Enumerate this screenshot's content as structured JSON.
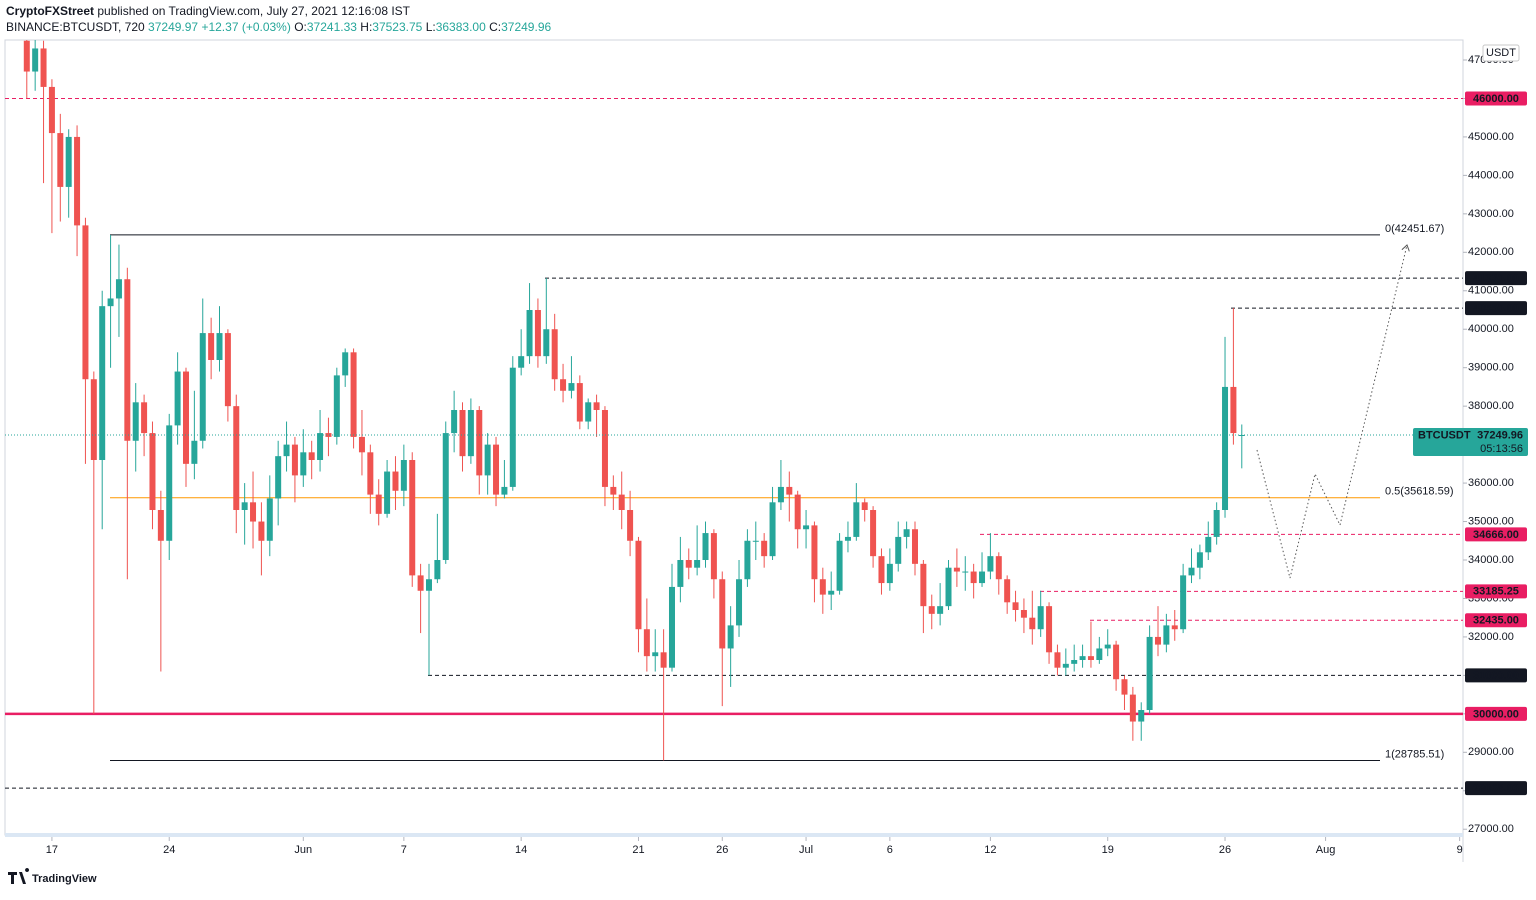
{
  "header": {
    "author": "CryptoFXStreet",
    "published": "published on TradingView.com, July 27, 2021 12:16:08 IST",
    "symbol": "BINANCE:BTCUSDT, 720",
    "last": "37249.97",
    "change": "+12.37 (+0.03%)",
    "ohlc": [
      {
        "key": "O:",
        "value": "37241.33"
      },
      {
        "key": "H:",
        "value": "37523.75"
      },
      {
        "key": "L:",
        "value": "36383.00"
      },
      {
        "key": "C:",
        "value": "37249.96"
      }
    ]
  },
  "chart_data": {
    "type": "candlestick",
    "currency": "USDT",
    "up_color": "#26a69a",
    "down_color": "#ef5350",
    "grid": false,
    "x": [
      -1.5,
      -1,
      -0.5,
      0,
      0.5,
      1,
      1.5,
      2,
      2.5,
      3,
      3.5,
      4,
      4.5,
      5,
      5.5,
      6,
      6.5,
      7,
      7.5,
      8,
      8.5,
      9,
      9.5,
      10,
      10.5,
      11,
      11.5,
      12,
      12.5,
      13,
      13.5,
      14,
      14.5,
      15,
      15.5,
      16,
      16.5,
      17,
      17.5,
      18,
      18.5,
      19,
      19.5,
      20,
      20.5,
      21,
      21.5,
      22,
      22.5,
      23,
      23.5,
      24,
      24.5,
      25,
      25.5,
      26,
      26.5,
      27,
      27.5,
      28,
      28.5,
      29,
      29.5,
      30,
      30.5,
      31,
      31.5,
      32,
      32.5,
      33,
      33.5,
      34,
      34.5,
      35,
      35.5,
      36,
      36.5,
      37,
      37.5,
      38,
      38.5,
      39,
      39.5,
      40,
      40.5,
      41,
      41.5,
      42,
      42.5,
      43,
      43.5,
      44,
      44.5,
      45,
      45.5,
      46,
      46.5,
      47,
      47.5,
      48,
      48.5,
      49,
      49.5,
      50,
      50.5,
      51,
      51.5,
      52,
      52.5,
      53,
      53.5,
      54,
      54.5,
      55,
      55.5,
      56,
      56.5,
      57,
      57.5,
      58,
      58.5,
      59,
      59.5,
      60,
      60.5,
      61,
      61.5,
      62,
      62.5,
      63,
      63.5,
      64,
      64.5,
      65,
      65.5,
      66,
      66.5,
      67,
      67.5,
      68,
      68.5,
      69,
      69.5,
      70,
      70.5,
      71
    ],
    "open": [
      47500,
      46700,
      47300,
      46300,
      45100,
      43700,
      45000,
      42700,
      38700,
      36600,
      40600,
      40800,
      41300,
      37100,
      38100,
      37300,
      35300,
      34500,
      37500,
      38900,
      36500,
      37100,
      39900,
      39200,
      39900,
      38000,
      35300,
      35500,
      35000,
      34500,
      35600,
      36700,
      37000,
      36200,
      36800,
      36600,
      37300,
      37200,
      38800,
      39400,
      37200,
      36800,
      35700,
      35200,
      36300,
      35800,
      36600,
      33600,
      33200,
      33500,
      34000,
      37300,
      37900,
      36700,
      37900,
      36200,
      37000,
      35700,
      35900,
      39000,
      39300,
      40500,
      39300,
      40000,
      38700,
      38400,
      38600,
      37600,
      38100,
      37900,
      35900,
      35700,
      35300,
      34500,
      32200,
      31500,
      31600,
      31200,
      33300,
      34000,
      33800,
      34000,
      34700,
      33500,
      31700,
      32300,
      33500,
      34500,
      34500,
      34100,
      35500,
      35900,
      35700,
      34800,
      34900,
      33500,
      33100,
      33200,
      34500,
      34600,
      35500,
      35300,
      34100,
      33400,
      33900,
      34600,
      34800,
      33900,
      32800,
      32600,
      32800,
      33800,
      33700,
      33700,
      33400,
      33700,
      34100,
      33500,
      32900,
      32700,
      32500,
      32200,
      32800,
      31600,
      31200,
      31300,
      31400,
      31500,
      31400,
      31700,
      31800,
      30900,
      30500,
      29800,
      30100,
      32000,
      31800,
      32300,
      32200,
      33600,
      33800,
      34200,
      34600,
      35300,
      38500,
      37241.33
    ],
    "high": [
      47700,
      47600,
      47500,
      46500,
      45600,
      45200,
      45300,
      42900,
      38900,
      41000,
      42450,
      42200,
      41600,
      38600,
      38300,
      37600,
      35800,
      37800,
      39400,
      39000,
      38400,
      40800,
      40300,
      40600,
      40000,
      38300,
      36000,
      36300,
      35500,
      36200,
      37100,
      37600,
      37200,
      37400,
      37100,
      37900,
      37700,
      39000,
      39500,
      39500,
      37900,
      37000,
      36100,
      36600,
      36700,
      37000,
      36800,
      33900,
      33900,
      35200,
      37600,
      38400,
      38100,
      38200,
      38000,
      37300,
      37200,
      36600,
      39300,
      40000,
      41200,
      40800,
      41330,
      40400,
      39100,
      39300,
      38800,
      38200,
      38300,
      38000,
      36200,
      36300,
      35800,
      34600,
      33000,
      32200,
      32200,
      33900,
      34600,
      34300,
      34900,
      35000,
      34800,
      33700,
      32800,
      34000,
      34800,
      35000,
      34700,
      35900,
      36600,
      36300,
      35800,
      35300,
      35000,
      33800,
      33700,
      34700,
      35000,
      36000,
      35600,
      35400,
      34300,
      34300,
      35000,
      35000,
      35000,
      34000,
      33100,
      33400,
      34000,
      34300,
      34100,
      33900,
      34200,
      34700,
      34200,
      33600,
      33200,
      33000,
      33200,
      33200,
      32900,
      31800,
      31700,
      31800,
      31800,
      32400,
      32000,
      32200,
      31900,
      31000,
      30700,
      30300,
      32300,
      32800,
      32600,
      32700,
      33900,
      34300,
      34400,
      35000,
      35500,
      39800,
      40550,
      37523.75
    ],
    "low": [
      46000,
      46200,
      43800,
      42500,
      42800,
      42900,
      41900,
      36500,
      30000,
      34800,
      39000,
      39800,
      33500,
      36300,
      36700,
      34800,
      31100,
      34000,
      37000,
      35900,
      36100,
      36900,
      38700,
      38900,
      37600,
      34700,
      34400,
      34300,
      33600,
      34100,
      34900,
      36300,
      35500,
      35900,
      36100,
      36300,
      36700,
      37000,
      38500,
      36900,
      36200,
      35200,
      34900,
      35100,
      35300,
      35400,
      33300,
      32100,
      31000,
      33400,
      33900,
      36800,
      36300,
      36500,
      35700,
      35700,
      35400,
      35600,
      35800,
      38800,
      39100,
      39000,
      39100,
      38400,
      38100,
      38200,
      37400,
      37400,
      37200,
      35400,
      35300,
      34800,
      34100,
      31600,
      31100,
      31100,
      28790,
      31100,
      32900,
      33500,
      33600,
      33800,
      33000,
      30200,
      30700,
      32000,
      33300,
      34000,
      33800,
      34000,
      35300,
      35000,
      34300,
      34300,
      32900,
      32600,
      32700,
      33100,
      34200,
      34500,
      35000,
      33800,
      33100,
      33200,
      33700,
      34300,
      33600,
      32100,
      32200,
      32300,
      32700,
      33300,
      33200,
      33000,
      33300,
      33500,
      33100,
      32600,
      32400,
      32100,
      31800,
      32000,
      31300,
      31000,
      31000,
      31100,
      31200,
      31200,
      31300,
      31500,
      30600,
      30100,
      29300,
      29300,
      30000,
      31500,
      31600,
      31900,
      32100,
      33400,
      33500,
      34000,
      34400,
      35100,
      37000,
      36383
    ],
    "close": [
      46700,
      47300,
      46300,
      45100,
      43700,
      45000,
      42700,
      38700,
      36600,
      40600,
      40800,
      41300,
      37100,
      38100,
      37300,
      35300,
      34500,
      37500,
      38900,
      36500,
      37100,
      39900,
      39200,
      39900,
      38000,
      35300,
      35500,
      35000,
      34500,
      35600,
      36700,
      37000,
      36200,
      36800,
      36600,
      37300,
      37200,
      38800,
      39400,
      37200,
      36800,
      35700,
      35200,
      36300,
      35800,
      36600,
      33600,
      33200,
      33500,
      34000,
      37300,
      37900,
      36700,
      37900,
      36200,
      37000,
      35700,
      35900,
      39000,
      39300,
      40500,
      39300,
      40000,
      38700,
      38400,
      38600,
      37600,
      38100,
      37900,
      35900,
      35700,
      35300,
      34500,
      32200,
      31500,
      31600,
      31200,
      33300,
      34000,
      33800,
      34000,
      34700,
      33500,
      31700,
      32300,
      33500,
      34500,
      34500,
      34100,
      35500,
      35900,
      35700,
      34800,
      34900,
      33500,
      33100,
      33200,
      34500,
      34600,
      35500,
      35300,
      34100,
      33400,
      33900,
      34600,
      34800,
      33900,
      32800,
      32600,
      32800,
      33800,
      33700,
      33700,
      33400,
      33700,
      34100,
      33500,
      32900,
      32700,
      32500,
      32200,
      32800,
      31600,
      31200,
      31300,
      31400,
      31500,
      31400,
      31700,
      31800,
      30900,
      30500,
      29800,
      30100,
      32000,
      31800,
      32300,
      32200,
      33600,
      33800,
      34200,
      34600,
      35300,
      38500,
      37300,
      37249.96
    ],
    "xlim": [
      -2.8,
      84.2
    ],
    "xticks": [
      {
        "value": 0,
        "label": "17"
      },
      {
        "value": 7,
        "label": "24"
      },
      {
        "value": 15,
        "label": "Jun"
      },
      {
        "value": 21,
        "label": "7"
      },
      {
        "value": 28,
        "label": "14"
      },
      {
        "value": 35,
        "label": "21"
      },
      {
        "value": 40,
        "label": "26"
      },
      {
        "value": 45,
        "label": "Jul"
      },
      {
        "value": 50,
        "label": "6"
      },
      {
        "value": 56,
        "label": "12"
      },
      {
        "value": 63,
        "label": "19"
      },
      {
        "value": 70,
        "label": "26"
      },
      {
        "value": 76,
        "label": "Aug"
      },
      {
        "value": 84,
        "label": "9"
      }
    ],
    "ylim": [
      26850,
      47520
    ],
    "yticks": [
      {
        "value": 27000,
        "label": "27000.00"
      },
      {
        "value": 28000,
        "label": "28000.00"
      },
      {
        "value": 29000,
        "label": "29000.00"
      },
      {
        "value": 30000,
        "label": "30000.00"
      },
      {
        "value": 31000,
        "label": "31000.00"
      },
      {
        "value": 32000,
        "label": "32000.00"
      },
      {
        "value": 33000,
        "label": "33000.00"
      },
      {
        "value": 34000,
        "label": "34000.00"
      },
      {
        "value": 35000,
        "label": "35000.00"
      },
      {
        "value": 36000,
        "label": "36000.00"
      },
      {
        "value": 37000,
        "label": "37000.00"
      },
      {
        "value": 38000,
        "label": "38000.00"
      },
      {
        "value": 39000,
        "label": "39000.00"
      },
      {
        "value": 40000,
        "label": "40000.00"
      },
      {
        "value": 41000,
        "label": "41000.00"
      },
      {
        "value": 42000,
        "label": "42000.00"
      },
      {
        "value": 43000,
        "label": "43000.00"
      },
      {
        "value": 44000,
        "label": "44000.00"
      },
      {
        "value": 45000,
        "label": "45000.00"
      },
      {
        "value": 46000,
        "label": "46000.00"
      },
      {
        "value": 47000,
        "label": "47000.00"
      }
    ],
    "levels": [
      {
        "value": 46000,
        "label": "46000.00",
        "color": "#e91e63",
        "style": "dashed"
      },
      {
        "value": 41330,
        "label": "41330.00",
        "color": "#131722",
        "style": "dashed"
      },
      {
        "value": 40550,
        "label": "40550.00",
        "color": "#131722",
        "style": "dashed"
      },
      {
        "value": 34666,
        "label": "34666.00",
        "color": "#e91e63",
        "style": "dashed"
      },
      {
        "value": 33185.25,
        "label": "33185.25",
        "color": "#e91e63",
        "style": "dashed"
      },
      {
        "value": 32435,
        "label": "32435.00",
        "color": "#e91e63",
        "style": "dashed"
      },
      {
        "value": 31000,
        "label": "31000.00",
        "color": "#131722",
        "style": "dashed"
      },
      {
        "value": 30000,
        "label": "30000.00",
        "color": "#e91e63",
        "style": "solid"
      },
      {
        "value": 28068.03,
        "label": "28068.03",
        "color": "#131722",
        "style": "dashed"
      }
    ],
    "fib_levels": [
      {
        "value": 42451.67,
        "label": "0(42451.67)",
        "color": "#131722"
      },
      {
        "value": 35618.59,
        "label": "0.5(35618.59)",
        "color": "#ff9800"
      },
      {
        "value": 28785.51,
        "label": "1(28785.51)",
        "color": "#131722"
      }
    ],
    "last_price": {
      "symbol": "BTCUSDT",
      "value": 37249.96,
      "label": "37249.96",
      "countdown": "05:13:56",
      "color": "#26a69a"
    }
  },
  "footer": {
    "brand": "TradingView"
  }
}
